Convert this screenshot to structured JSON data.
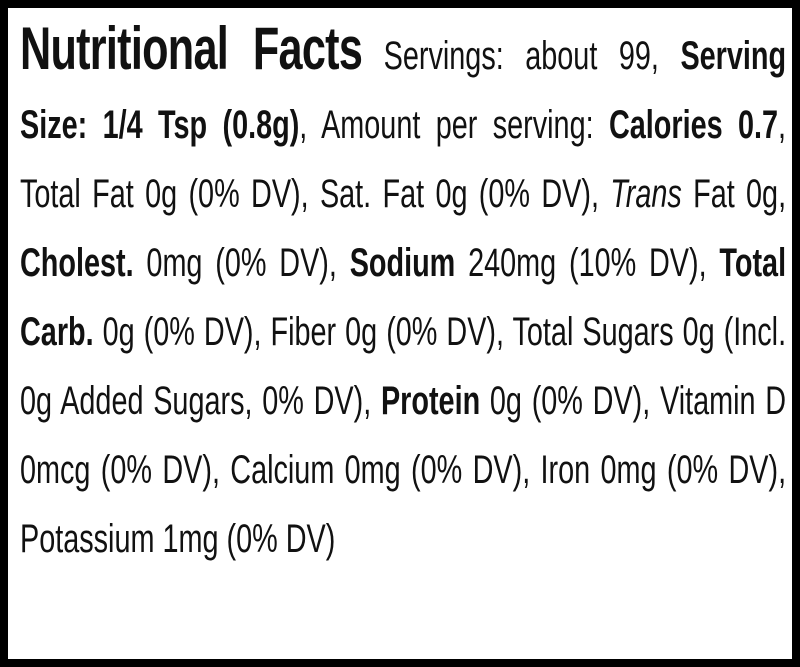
{
  "label": {
    "title": "Nutritional Facts",
    "runs": [
      {
        "text": " Servings: about 99, ",
        "style": "normal"
      },
      {
        "text": "Serving Size: 1/4 Tsp (0.8g)",
        "style": "bold"
      },
      {
        "text": ", Amount per serving: ",
        "style": "normal"
      },
      {
        "text": "Calories 0.7",
        "style": "bold"
      },
      {
        "text": ", Total Fat 0g (0% DV), Sat. Fat 0g (0% DV), ",
        "style": "normal"
      },
      {
        "text": "Trans",
        "style": "italic"
      },
      {
        "text": " Fat 0g, ",
        "style": "normal"
      },
      {
        "text": "Cholest.",
        "style": "bold"
      },
      {
        "text": " 0mg (0% DV), ",
        "style": "normal"
      },
      {
        "text": "Sodium",
        "style": "bold"
      },
      {
        "text": " 240mg (10% DV), ",
        "style": "normal"
      },
      {
        "text": "Total Carb.",
        "style": "bold"
      },
      {
        "text": " 0g (0% DV), Fiber 0g (0% DV), Total Sugars 0g (Incl. 0g Added Sugars, 0% DV), ",
        "style": "normal"
      },
      {
        "text": "Protein",
        "style": "bold"
      },
      {
        "text": " 0g (0% DV), Vitamin D 0mcg (0% DV), Calcium 0mg (0% DV), Iron 0mg (0% DV), Potassium 1mg (0% DV)",
        "style": "normal"
      }
    ]
  }
}
